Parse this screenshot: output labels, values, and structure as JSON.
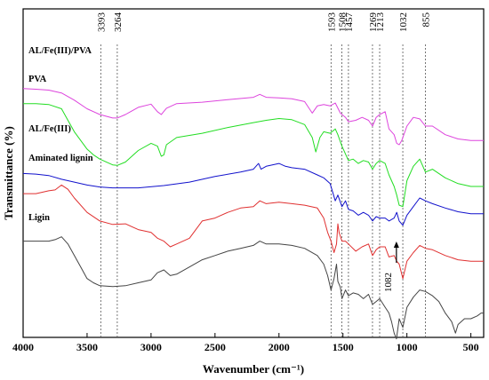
{
  "chart_data": {
    "type": "line",
    "title": "",
    "xlabel": "Wavenumber (cm⁻¹)",
    "ylabel": "Transmittance (%)",
    "xlim": [
      4000,
      400
    ],
    "x_reversed": true,
    "xticks": [
      4000,
      3500,
      3000,
      2500,
      2000,
      1500,
      1000,
      500
    ],
    "ylim": [
      0,
      100
    ],
    "yticks_shown": false,
    "grid": false,
    "peak_markers": [
      "3393",
      "3264",
      "1593",
      "1508",
      "1457",
      "1269",
      "1213",
      "1032",
      "855"
    ],
    "peak_marker_positions": [
      3393,
      3264,
      1593,
      1508,
      1457,
      1269,
      1213,
      1032,
      855
    ],
    "annotation": {
      "text": "1082",
      "x": 1082,
      "y": 35
    },
    "series": [
      {
        "name": "AL/Fe(III)/PVA",
        "color": "#dd44dd",
        "points": [
          [
            4000,
            84
          ],
          [
            3900,
            83.8
          ],
          [
            3800,
            83.5
          ],
          [
            3700,
            82.5
          ],
          [
            3600,
            80
          ],
          [
            3500,
            77
          ],
          [
            3400,
            75
          ],
          [
            3300,
            73.8
          ],
          [
            3264,
            73.8
          ],
          [
            3200,
            75
          ],
          [
            3100,
            77.5
          ],
          [
            3000,
            78.6
          ],
          [
            2950,
            76
          ],
          [
            2920,
            75
          ],
          [
            2880,
            77.2
          ],
          [
            2800,
            78.8
          ],
          [
            2600,
            79.3
          ],
          [
            2400,
            80.2
          ],
          [
            2200,
            81
          ],
          [
            2150,
            82
          ],
          [
            2100,
            81
          ],
          [
            2000,
            80.8
          ],
          [
            1900,
            80.5
          ],
          [
            1800,
            79.5
          ],
          [
            1740,
            75.5
          ],
          [
            1700,
            78
          ],
          [
            1650,
            78.5
          ],
          [
            1600,
            78
          ],
          [
            1560,
            79
          ],
          [
            1520,
            75.5
          ],
          [
            1480,
            74
          ],
          [
            1457,
            72.5
          ],
          [
            1400,
            73
          ],
          [
            1350,
            74
          ],
          [
            1300,
            73
          ],
          [
            1269,
            71
          ],
          [
            1240,
            74
          ],
          [
            1213,
            75
          ],
          [
            1170,
            76
          ],
          [
            1140,
            70
          ],
          [
            1100,
            68
          ],
          [
            1080,
            65
          ],
          [
            1060,
            64.5
          ],
          [
            1040,
            66
          ],
          [
            1000,
            71
          ],
          [
            950,
            74
          ],
          [
            900,
            73.5
          ],
          [
            855,
            71
          ],
          [
            800,
            71
          ],
          [
            700,
            68
          ],
          [
            600,
            66.5
          ],
          [
            500,
            66
          ],
          [
            400,
            66
          ]
        ]
      },
      {
        "name": "PVA",
        "color": "#22dd22",
        "points": [
          [
            4000,
            78.8
          ],
          [
            3900,
            78.8
          ],
          [
            3800,
            78.5
          ],
          [
            3700,
            77
          ],
          [
            3650,
            73
          ],
          [
            3600,
            69
          ],
          [
            3500,
            63
          ],
          [
            3450,
            61
          ],
          [
            3400,
            59.5
          ],
          [
            3300,
            57.5
          ],
          [
            3264,
            57.3
          ],
          [
            3200,
            58.5
          ],
          [
            3100,
            62.5
          ],
          [
            3000,
            65
          ],
          [
            2950,
            64
          ],
          [
            2920,
            60.5
          ],
          [
            2900,
            61
          ],
          [
            2880,
            64.5
          ],
          [
            2800,
            67
          ],
          [
            2600,
            68.5
          ],
          [
            2400,
            70.5
          ],
          [
            2200,
            72.2
          ],
          [
            2100,
            73
          ],
          [
            2000,
            73.6
          ],
          [
            1900,
            73.2
          ],
          [
            1800,
            71.5
          ],
          [
            1740,
            67
          ],
          [
            1712,
            62
          ],
          [
            1680,
            67
          ],
          [
            1650,
            69
          ],
          [
            1600,
            68.5
          ],
          [
            1560,
            70
          ],
          [
            1540,
            68
          ],
          [
            1508,
            64
          ],
          [
            1457,
            59
          ],
          [
            1420,
            59.5
          ],
          [
            1380,
            58
          ],
          [
            1340,
            59
          ],
          [
            1300,
            58.5
          ],
          [
            1269,
            56
          ],
          [
            1240,
            58
          ],
          [
            1213,
            59
          ],
          [
            1170,
            58
          ],
          [
            1140,
            54
          ],
          [
            1100,
            50
          ],
          [
            1080,
            47
          ],
          [
            1060,
            43.5
          ],
          [
            1032,
            43
          ],
          [
            1000,
            52
          ],
          [
            950,
            57
          ],
          [
            900,
            59.5
          ],
          [
            855,
            55
          ],
          [
            800,
            56
          ],
          [
            700,
            53
          ],
          [
            600,
            51
          ],
          [
            500,
            50
          ],
          [
            400,
            50
          ]
        ]
      },
      {
        "name": "AL/Fe(III)",
        "color": "#1111cc",
        "points": [
          [
            4000,
            54.5
          ],
          [
            3900,
            54.3
          ],
          [
            3800,
            53.8
          ],
          [
            3700,
            52.5
          ],
          [
            3600,
            51.5
          ],
          [
            3500,
            50.5
          ],
          [
            3400,
            49.8
          ],
          [
            3300,
            49.5
          ],
          [
            3100,
            49.5
          ],
          [
            2900,
            50.3
          ],
          [
            2700,
            51.5
          ],
          [
            2500,
            53.5
          ],
          [
            2300,
            55
          ],
          [
            2200,
            56
          ],
          [
            2160,
            58
          ],
          [
            2140,
            56
          ],
          [
            2100,
            57
          ],
          [
            2000,
            58
          ],
          [
            1950,
            57
          ],
          [
            1900,
            56.5
          ],
          [
            1800,
            56
          ],
          [
            1700,
            54
          ],
          [
            1650,
            53
          ],
          [
            1600,
            51
          ],
          [
            1560,
            45
          ],
          [
            1540,
            47
          ],
          [
            1508,
            43
          ],
          [
            1480,
            45
          ],
          [
            1457,
            42
          ],
          [
            1420,
            41.5
          ],
          [
            1380,
            40
          ],
          [
            1340,
            41
          ],
          [
            1300,
            40
          ],
          [
            1269,
            38
          ],
          [
            1240,
            39.5
          ],
          [
            1213,
            39
          ],
          [
            1170,
            39
          ],
          [
            1140,
            38
          ],
          [
            1100,
            39
          ],
          [
            1080,
            41
          ],
          [
            1060,
            38
          ],
          [
            1032,
            36.5
          ],
          [
            1000,
            40
          ],
          [
            950,
            43
          ],
          [
            900,
            46
          ],
          [
            855,
            45
          ],
          [
            800,
            44
          ],
          [
            700,
            42.5
          ],
          [
            600,
            41.2
          ],
          [
            500,
            40.5
          ],
          [
            400,
            40.5
          ]
        ]
      },
      {
        "name": "Aminated lignin",
        "color": "#e03030",
        "points": [
          [
            4000,
            47.5
          ],
          [
            3900,
            47.5
          ],
          [
            3800,
            48.5
          ],
          [
            3750,
            48.8
          ],
          [
            3700,
            50.5
          ],
          [
            3650,
            49
          ],
          [
            3600,
            46
          ],
          [
            3500,
            41
          ],
          [
            3400,
            38
          ],
          [
            3300,
            36.8
          ],
          [
            3200,
            37
          ],
          [
            3100,
            35
          ],
          [
            3000,
            34
          ],
          [
            2950,
            32
          ],
          [
            2900,
            31
          ],
          [
            2850,
            29
          ],
          [
            2800,
            30
          ],
          [
            2700,
            32
          ],
          [
            2650,
            35
          ],
          [
            2600,
            38
          ],
          [
            2500,
            39
          ],
          [
            2400,
            41
          ],
          [
            2300,
            42.5
          ],
          [
            2200,
            43
          ],
          [
            2150,
            45
          ],
          [
            2100,
            44
          ],
          [
            2000,
            44.5
          ],
          [
            1900,
            44
          ],
          [
            1800,
            43.5
          ],
          [
            1700,
            42.5
          ],
          [
            1650,
            39
          ],
          [
            1620,
            34
          ],
          [
            1593,
            31
          ],
          [
            1570,
            27
          ],
          [
            1550,
            30
          ],
          [
            1540,
            37
          ],
          [
            1530,
            34
          ],
          [
            1508,
            31
          ],
          [
            1480,
            31
          ],
          [
            1457,
            30
          ],
          [
            1400,
            27.5
          ],
          [
            1350,
            29
          ],
          [
            1300,
            30
          ],
          [
            1269,
            26
          ],
          [
            1240,
            28
          ],
          [
            1213,
            29
          ],
          [
            1170,
            29
          ],
          [
            1140,
            25.5
          ],
          [
            1100,
            26
          ],
          [
            1080,
            24
          ],
          [
            1060,
            23
          ],
          [
            1032,
            18
          ],
          [
            1000,
            24
          ],
          [
            950,
            27
          ],
          [
            900,
            29.5
          ],
          [
            855,
            28.5
          ],
          [
            800,
            28
          ],
          [
            700,
            26
          ],
          [
            600,
            24.5
          ],
          [
            500,
            24
          ],
          [
            400,
            24
          ]
        ]
      },
      {
        "name": "Ligin",
        "color": "#444444",
        "points": [
          [
            4000,
            31
          ],
          [
            3900,
            31
          ],
          [
            3800,
            31
          ],
          [
            3750,
            31.5
          ],
          [
            3700,
            32.5
          ],
          [
            3650,
            30
          ],
          [
            3600,
            26
          ],
          [
            3550,
            22
          ],
          [
            3500,
            18
          ],
          [
            3450,
            16.5
          ],
          [
            3400,
            15.5
          ],
          [
            3300,
            15.2
          ],
          [
            3200,
            15.5
          ],
          [
            3100,
            16.5
          ],
          [
            3000,
            17.5
          ],
          [
            2950,
            20
          ],
          [
            2900,
            21
          ],
          [
            2850,
            19
          ],
          [
            2800,
            19.5
          ],
          [
            2700,
            22
          ],
          [
            2600,
            24.5
          ],
          [
            2500,
            26
          ],
          [
            2400,
            27.5
          ],
          [
            2300,
            28.5
          ],
          [
            2200,
            29.5
          ],
          [
            2150,
            31
          ],
          [
            2100,
            30
          ],
          [
            2000,
            30
          ],
          [
            1900,
            29.5
          ],
          [
            1800,
            28.5
          ],
          [
            1700,
            26
          ],
          [
            1650,
            23
          ],
          [
            1620,
            19
          ],
          [
            1593,
            14
          ],
          [
            1570,
            18
          ],
          [
            1550,
            23
          ],
          [
            1540,
            17
          ],
          [
            1520,
            15
          ],
          [
            1508,
            11
          ],
          [
            1480,
            14
          ],
          [
            1457,
            12
          ],
          [
            1420,
            13
          ],
          [
            1380,
            12.5
          ],
          [
            1340,
            11
          ],
          [
            1300,
            12.5
          ],
          [
            1269,
            9
          ],
          [
            1240,
            10
          ],
          [
            1213,
            11
          ],
          [
            1170,
            8
          ],
          [
            1140,
            6
          ],
          [
            1120,
            3
          ],
          [
            1100,
            -1
          ],
          [
            1082,
            -3
          ],
          [
            1060,
            4
          ],
          [
            1032,
            1
          ],
          [
            1000,
            8
          ],
          [
            950,
            11.5
          ],
          [
            900,
            14
          ],
          [
            855,
            13.5
          ],
          [
            800,
            12
          ],
          [
            750,
            10
          ],
          [
            700,
            6
          ],
          [
            650,
            3
          ],
          [
            620,
            -1
          ],
          [
            600,
            2
          ],
          [
            550,
            4
          ],
          [
            500,
            4
          ],
          [
            450,
            5
          ],
          [
            420,
            6
          ],
          [
            400,
            6
          ]
        ]
      }
    ]
  }
}
